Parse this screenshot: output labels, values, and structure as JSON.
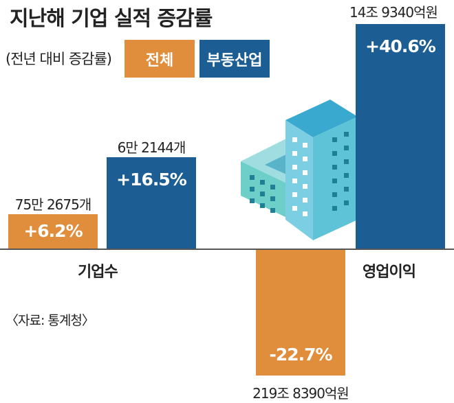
{
  "colors": {
    "total": "#E08D3C",
    "real_estate": "#1C5E94"
  },
  "chart_data": {
    "type": "bar",
    "title": "지난해 기업 실적 증감률",
    "subtitle": "(전년 대비 증감률)",
    "legend": [
      "전체",
      "부동산업"
    ],
    "categories": [
      "기업수",
      "영업이익"
    ],
    "series": [
      {
        "name": "전체",
        "values": [
          6.2,
          -22.7
        ],
        "value_labels": [
          "+6.2%",
          "-22.7%"
        ],
        "annotations": [
          "75만 2675개",
          "219조 8390억원"
        ]
      },
      {
        "name": "부동산업",
        "values": [
          16.5,
          40.6
        ],
        "value_labels": [
          "+16.5%",
          "+40.6%"
        ],
        "annotations": [
          "6만 2144개",
          "14조 9340억원"
        ]
      }
    ],
    "source": "〈자료: 통계청〉"
  }
}
